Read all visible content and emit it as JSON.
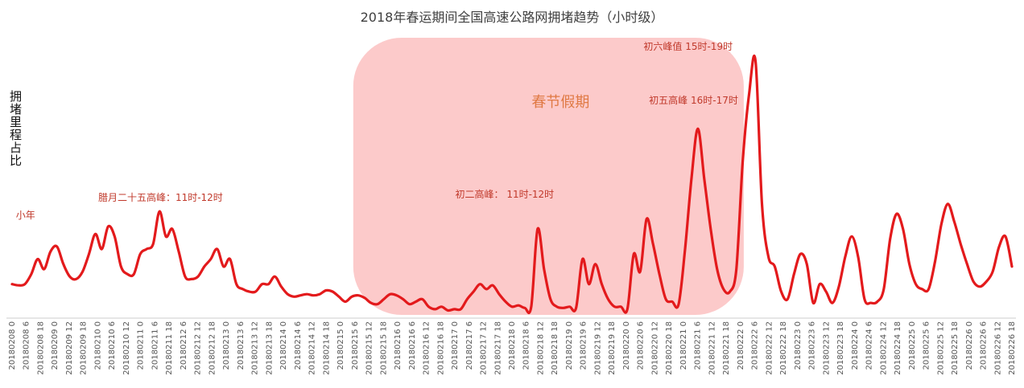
{
  "chart_data": {
    "type": "line",
    "title": "2018年春运期间全国高速公路网拥堵趋势（小时级）",
    "ylabel": "拥堵里程占比",
    "xlabel": "",
    "series_color": "#e31a1c",
    "holiday_color": "#fbb4b4",
    "grid": false,
    "tick_labels": [
      "20180208 0",
      "20180208 6",
      "20180208 18",
      "20180209 0",
      "20180209 12",
      "20180209 18",
      "20180210 0",
      "20180210 6",
      "20180210 12",
      "20180211 0",
      "20180211 6",
      "20180211 18",
      "20180212 6",
      "20180212 12",
      "20180212 18",
      "20180213 0",
      "20180213 6",
      "20180213 12",
      "20180213 18",
      "20180214 0",
      "20180214 6",
      "20180214 12",
      "20180214 18",
      "20180215 0",
      "20180215 6",
      "20180215 12",
      "20180215 18",
      "20180216 0",
      "20180216 6",
      "20180216 12",
      "20180216 18",
      "20180217 0",
      "20180217 6",
      "20180217 12",
      "20180217 18",
      "20180218 0",
      "20180218 6",
      "20180218 12",
      "20180218 18",
      "20180219 0",
      "20180219 6",
      "20180219 12",
      "20180219 18",
      "20180220 0",
      "20180220 6",
      "20180220 12",
      "20180220 18",
      "20180221 0",
      "20180221 6",
      "20180221 12",
      "20180221 18",
      "20180222 0",
      "20180222 6",
      "20180222 12",
      "20180222 18",
      "20180223 0",
      "20180223 6",
      "20180223 12",
      "20180223 18",
      "20180224 0",
      "20180224 6",
      "20180224 12",
      "20180224 18",
      "20180225 0",
      "20180225 6",
      "20180225 12",
      "20180225 18",
      "20180226 0",
      "20180226 6",
      "20180226 12",
      "20180226 18"
    ],
    "values": [
      0.06,
      0.055,
      0.06,
      0.1,
      0.16,
      0.12,
      0.19,
      0.21,
      0.14,
      0.09,
      0.08,
      0.11,
      0.18,
      0.26,
      0.2,
      0.29,
      0.25,
      0.13,
      0.1,
      0.1,
      0.18,
      0.2,
      0.22,
      0.35,
      0.25,
      0.28,
      0.19,
      0.09,
      0.08,
      0.09,
      0.13,
      0.16,
      0.2,
      0.13,
      0.16,
      0.06,
      0.04,
      0.03,
      0.03,
      0.06,
      0.06,
      0.09,
      0.05,
      0.02,
      0.01,
      0.015,
      0.02,
      0.015,
      0.02,
      0.035,
      0.03,
      0.01,
      -0.01,
      0.01,
      0.015,
      0.005,
      -0.015,
      -0.02,
      0.0,
      0.02,
      0.015,
      0.0,
      -0.02,
      -0.01,
      0.0,
      -0.03,
      -0.04,
      -0.03,
      -0.045,
      -0.04,
      -0.04,
      0.0,
      0.03,
      0.06,
      0.04,
      0.055,
      0.02,
      -0.01,
      -0.03,
      -0.025,
      -0.035,
      -0.03,
      0.28,
      0.12,
      0.0,
      -0.03,
      -0.035,
      -0.03,
      -0.035,
      0.16,
      0.06,
      0.14,
      0.06,
      0.0,
      -0.03,
      -0.03,
      -0.04,
      0.18,
      0.11,
      0.32,
      0.22,
      0.1,
      0.0,
      -0.01,
      -0.02,
      0.2,
      0.48,
      0.68,
      0.48,
      0.28,
      0.12,
      0.04,
      0.03,
      0.12,
      0.55,
      0.82,
      0.95,
      0.38,
      0.17,
      0.13,
      0.03,
      0.0,
      0.1,
      0.18,
      0.14,
      -0.015,
      0.06,
      0.03,
      -0.015,
      0.05,
      0.17,
      0.25,
      0.17,
      0.0,
      -0.015,
      -0.01,
      0.04,
      0.24,
      0.34,
      0.28,
      0.14,
      0.06,
      0.04,
      0.04,
      0.15,
      0.3,
      0.38,
      0.31,
      0.22,
      0.14,
      0.07,
      0.05,
      0.07,
      0.11,
      0.21,
      0.25,
      0.13
    ],
    "holiday_label": "春节假期",
    "holiday_start": "20180215 6",
    "holiday_end": "20180222 0",
    "annotations": [
      {
        "text": "小年",
        "at": "20180208 6"
      },
      {
        "text": "腊月二十五高峰：11时-12时",
        "at": "20180210 12"
      },
      {
        "text": "初二高峰： 11时-12时",
        "at": "20180217 12"
      },
      {
        "text": "初五高峰 16时-17时",
        "at": "20180220 18"
      },
      {
        "text": "初六峰值 15时-19时",
        "at": "20180221 12"
      }
    ]
  }
}
